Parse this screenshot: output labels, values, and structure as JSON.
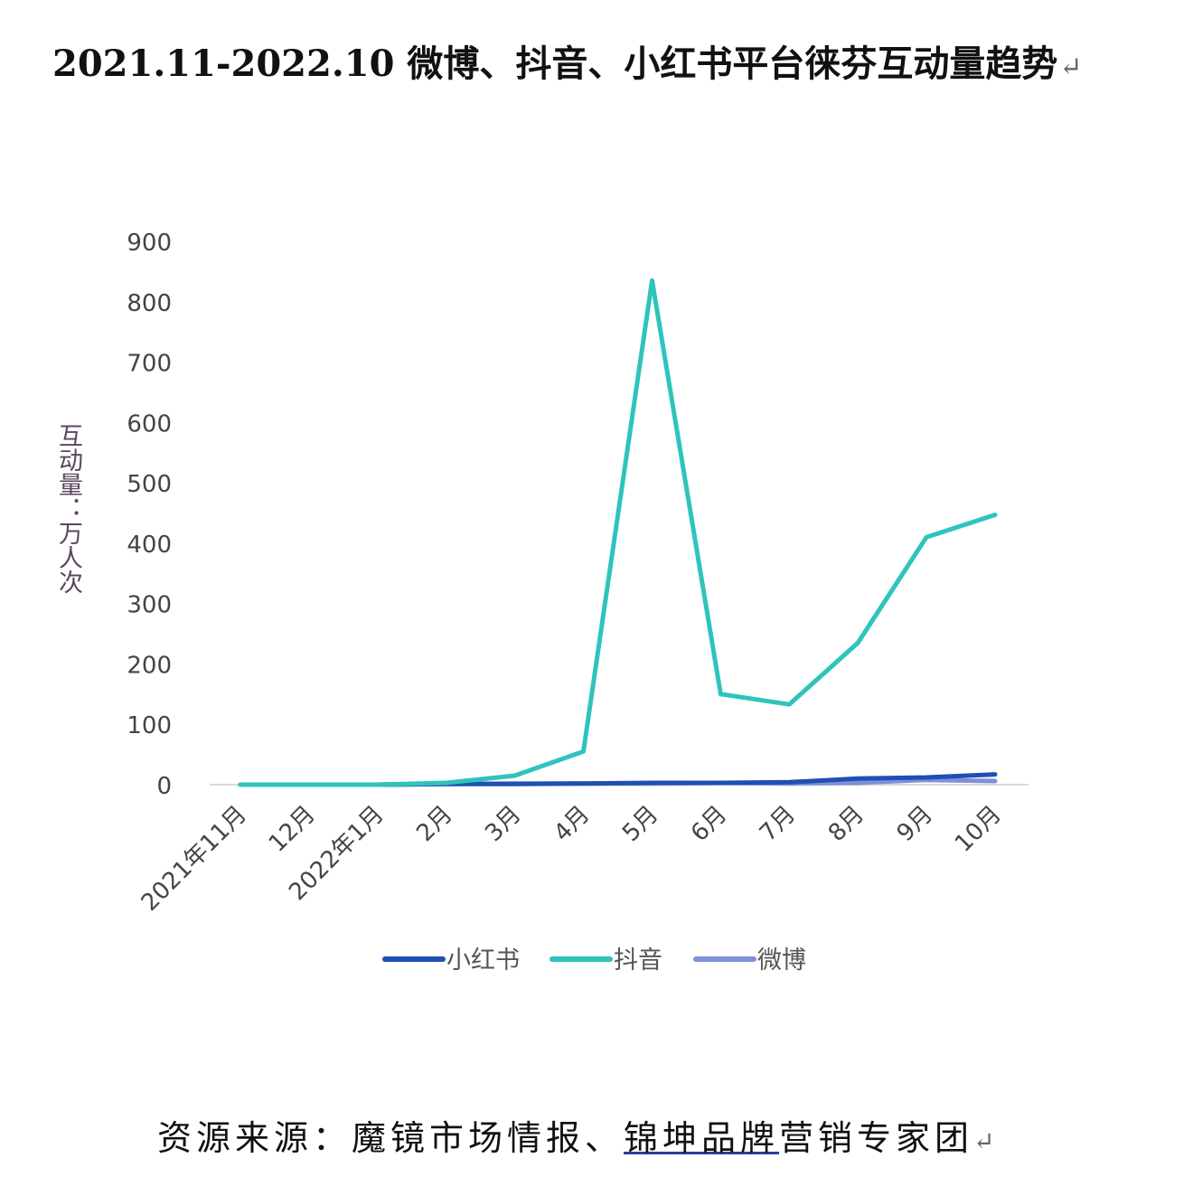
{
  "title": "2021.11-2022.10 微博、抖音、小红书平台徕芬互动量趋势",
  "title_mark": "↵",
  "source": {
    "prefix": "资源来源：魔镜市场情报、",
    "underlined": "锦坤品牌",
    "suffix": "营销专家团",
    "mark": "↵"
  },
  "chart_data": {
    "type": "line",
    "title": "",
    "ylabel": "互动量：万人次",
    "xlabel": "",
    "ylim": [
      0,
      900
    ],
    "yticks": [
      0,
      100,
      200,
      300,
      400,
      500,
      600,
      700,
      800,
      900
    ],
    "grid": false,
    "legend_position": "bottom",
    "categories": [
      "2021年11月",
      "12月",
      "2022年1月",
      "2月",
      "3月",
      "4月",
      "5月",
      "6月",
      "7月",
      "8月",
      "9月",
      "10月"
    ],
    "series": [
      {
        "name": "小红书",
        "color": "#1f4fb5",
        "values": [
          0,
          0,
          0,
          1,
          1,
          2,
          3,
          3,
          4,
          10,
          12,
          17
        ]
      },
      {
        "name": "抖音",
        "color": "#2ec4bd",
        "values": [
          0,
          0,
          0,
          3,
          15,
          55,
          835,
          150,
          133,
          235,
          410,
          447
        ]
      },
      {
        "name": "微博",
        "color": "#7f8fd8",
        "values": [
          0,
          0,
          0,
          1,
          2,
          2,
          2,
          3,
          2,
          3,
          8,
          6
        ]
      }
    ]
  }
}
